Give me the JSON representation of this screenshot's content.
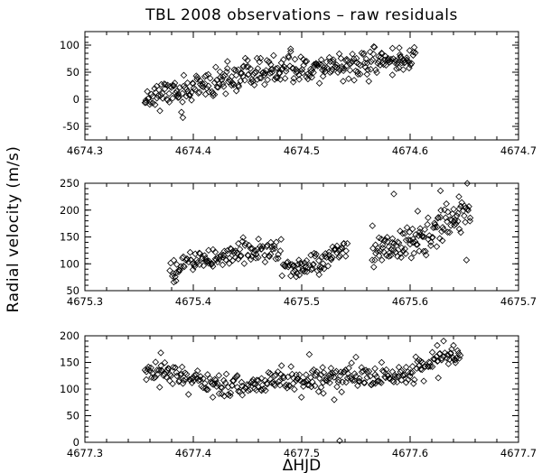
{
  "chart_data": {
    "title": "TBL 2008 observations – raw residuals",
    "ylabel": "Radial velocity (m/s)",
    "xlabel": "ΔHJD",
    "grid": false,
    "panels": [
      {
        "type": "scatter",
        "marker": "diamond",
        "xlim": [
          4674.3,
          4674.7
        ],
        "ylim": [
          -75,
          125
        ],
        "xticks": [
          "4674.3",
          "4674.4",
          "4674.5",
          "4674.6",
          "4674.7"
        ],
        "yticks": [
          "-50",
          "0",
          "50",
          "100"
        ],
        "trend": [
          [
            4674.355,
            5
          ],
          [
            4674.4,
            18
          ],
          [
            4674.45,
            45
          ],
          [
            4674.5,
            58
          ],
          [
            4674.55,
            62
          ],
          [
            4674.6,
            77
          ]
        ],
        "x_range": [
          4674.355,
          4674.605
        ],
        "n": 330,
        "scatter": 13,
        "seed": 11,
        "extra_points": [
          [
            4674.59,
            95
          ],
          [
            4674.45,
            72
          ],
          [
            4674.39,
            -5
          ]
        ]
      },
      {
        "type": "scatter",
        "marker": "diamond",
        "xlim": [
          4675.3,
          4675.7
        ],
        "ylim": [
          50,
          250
        ],
        "xticks": [
          "4675.3",
          "4675.4",
          "4675.5",
          "4675.6",
          "4675.7"
        ],
        "yticks": [
          "50",
          "100",
          "150",
          "200",
          "250"
        ],
        "segments": [
          {
            "trend": [
              [
                4675.378,
                90
              ],
              [
                4675.4,
                108
              ],
              [
                4675.44,
                118
              ],
              [
                4675.47,
                128
              ],
              [
                4675.48,
                118
              ]
            ],
            "x_range": [
              4675.378,
              4675.481
            ],
            "n": 120,
            "scatter": 11,
            "seed": 21
          },
          {
            "trend": [
              [
                4675.482,
                95
              ],
              [
                4675.5,
                90
              ],
              [
                4675.52,
                108
              ],
              [
                4675.542,
                124
              ]
            ],
            "x_range": [
              4675.482,
              4675.542
            ],
            "n": 75,
            "scatter": 11,
            "seed": 23
          },
          {
            "trend": [
              [
                4675.565,
                128
              ],
              [
                4675.59,
                135
              ],
              [
                4675.61,
                145
              ],
              [
                4675.63,
                170
              ],
              [
                4675.655,
                200
              ]
            ],
            "x_range": [
              4675.565,
              4675.656
            ],
            "n": 130,
            "scatter": 16,
            "seed": 27
          }
        ],
        "extra_points": [
          [
            4675.585,
            230
          ],
          [
            4675.628,
            236
          ],
          [
            4675.652,
            107
          ],
          [
            4675.645,
            225
          ],
          [
            4675.382,
            66
          ],
          [
            4675.607,
            198
          ],
          [
            4675.565,
            107
          ]
        ]
      },
      {
        "type": "scatter",
        "marker": "diamond",
        "xlim": [
          4677.3,
          4677.7
        ],
        "ylim": [
          0,
          200
        ],
        "xticks": [
          "4677.3",
          "4677.4",
          "4677.5",
          "4677.6",
          "4677.7"
        ],
        "yticks": [
          "0",
          "50",
          "100",
          "150",
          "200"
        ],
        "trend": [
          [
            4677.355,
            135
          ],
          [
            4677.38,
            128
          ],
          [
            4677.41,
            112
          ],
          [
            4677.45,
            110
          ],
          [
            4677.5,
            115
          ],
          [
            4677.53,
            125
          ],
          [
            4677.57,
            120
          ],
          [
            4677.6,
            128
          ],
          [
            4677.62,
            150
          ],
          [
            4677.645,
            165
          ]
        ],
        "x_range": [
          4677.355,
          4677.647
        ],
        "n": 330,
        "scatter": 11,
        "seed": 37,
        "extra_points": [
          [
            4677.535,
            3
          ],
          [
            4677.53,
            80
          ],
          [
            4677.52,
            92
          ],
          [
            4677.507,
            165
          ],
          [
            4677.37,
            168
          ],
          [
            4677.64,
            182
          ],
          [
            4677.625,
            182
          ],
          [
            4677.55,
            160
          ]
        ]
      }
    ]
  }
}
